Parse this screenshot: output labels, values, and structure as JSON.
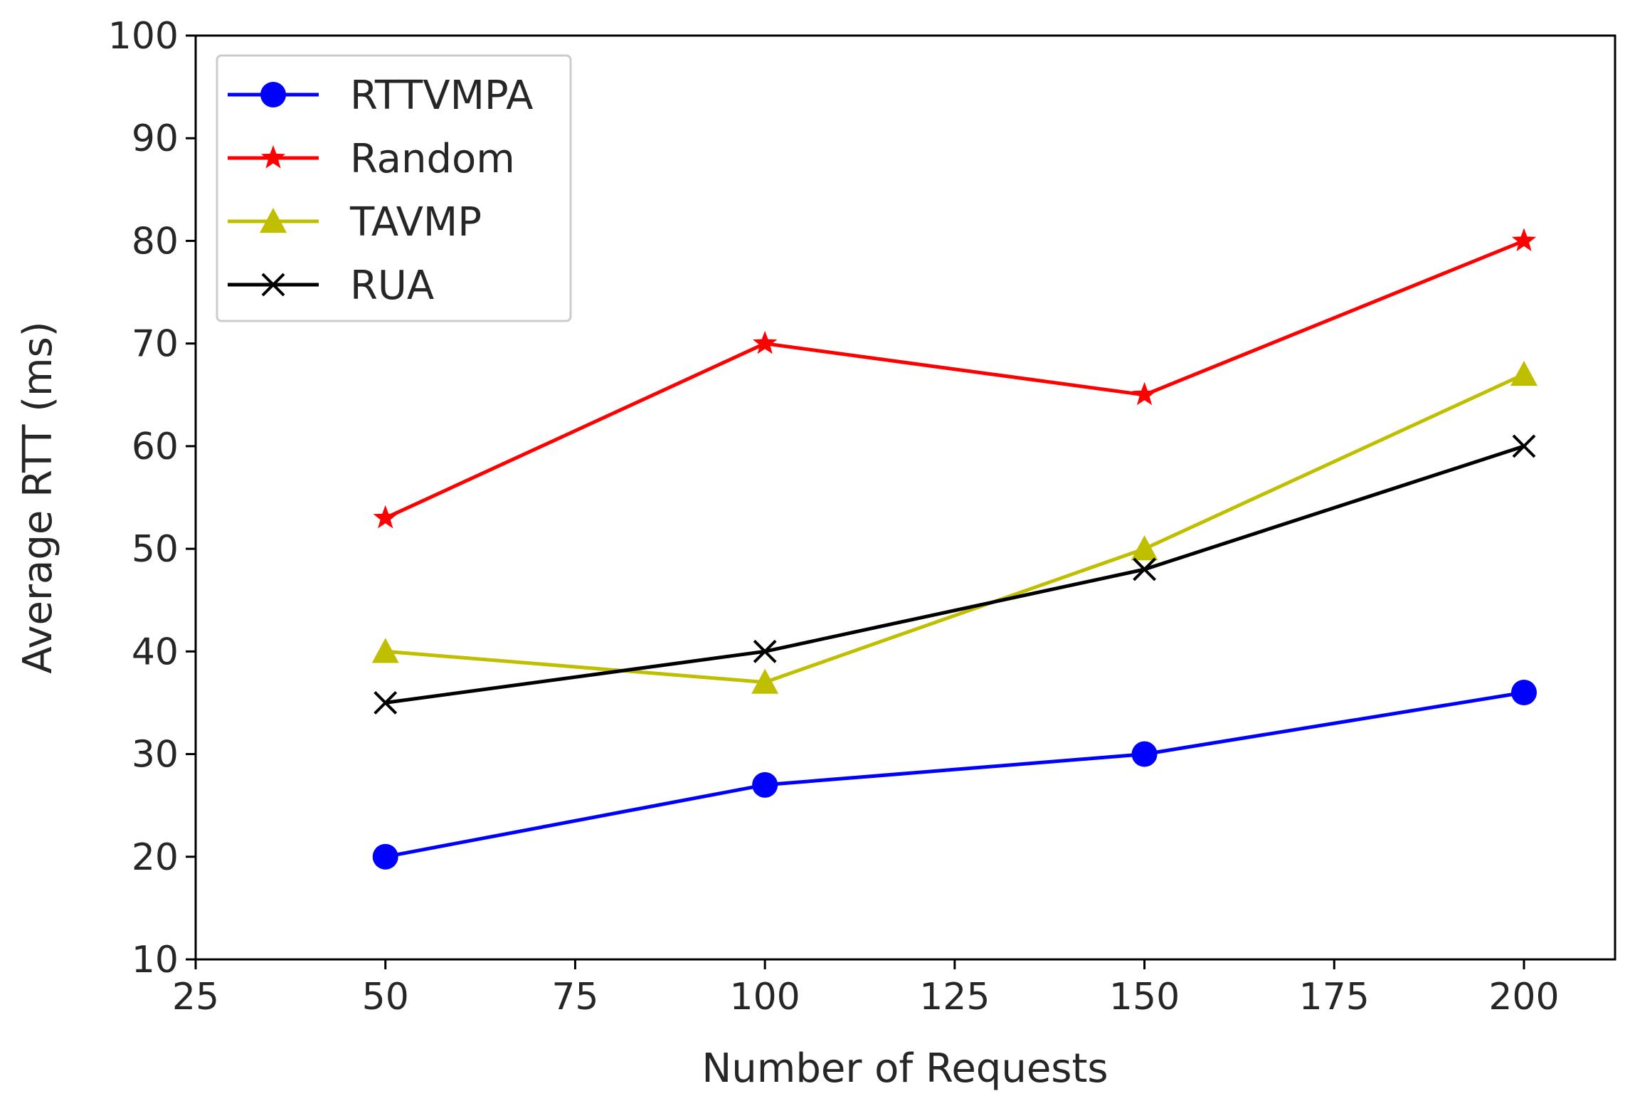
{
  "chart_data": {
    "type": "line",
    "title": "",
    "xlabel": "Number of Requests",
    "ylabel": "Average RTT (ms)",
    "xlim": [
      25,
      212
    ],
    "ylim": [
      10,
      100
    ],
    "xticks": [
      25,
      50,
      75,
      100,
      125,
      150,
      175,
      200
    ],
    "yticks": [
      10,
      20,
      30,
      40,
      50,
      60,
      70,
      80,
      90,
      100
    ],
    "xtick_labels": [
      "25",
      "50",
      "75",
      "100",
      "125",
      "150",
      "175",
      "200"
    ],
    "ytick_labels": [
      "10",
      "20",
      "30",
      "40",
      "50",
      "60",
      "70",
      "80",
      "90",
      "100"
    ],
    "grid": false,
    "legend_position": "top-left",
    "x": [
      50,
      100,
      150,
      200
    ],
    "series": [
      {
        "name": "RTTVMPA",
        "values": [
          20,
          27,
          30,
          36
        ],
        "color": "#0000ff",
        "marker": "circle"
      },
      {
        "name": "Random",
        "values": [
          53,
          70,
          65,
          80
        ],
        "color": "#ff0000",
        "marker": "star"
      },
      {
        "name": "TAVMP",
        "values": [
          40,
          37,
          50,
          67
        ],
        "color": "#bfbf00",
        "marker": "triangle"
      },
      {
        "name": "RUA",
        "values": [
          35,
          40,
          48,
          60
        ],
        "color": "#000000",
        "marker": "x"
      }
    ]
  }
}
